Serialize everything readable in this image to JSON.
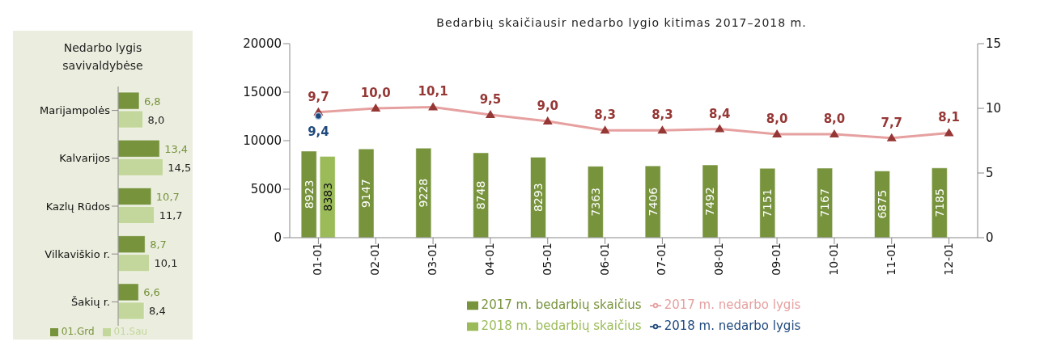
{
  "chart_data": [
    {
      "type": "bar",
      "orientation": "horizontal",
      "title": "Nedarbo lygis savivaldybėse",
      "categories": [
        "Marijampolės",
        "Kalvarijos",
        "Kazlų Rūdos",
        "Vilkaviškio r.",
        "Šakių r."
      ],
      "series": [
        {
          "name": "01.Grd",
          "color": "#77933c",
          "values": [
            6.8,
            13.4,
            10.7,
            8.7,
            6.6
          ],
          "value_labels": [
            "6,8",
            "13,4",
            "10,7",
            "8,7",
            "6,6"
          ]
        },
        {
          "name": "01.Sau",
          "color": "#c3d69b",
          "values": [
            8.0,
            14.5,
            11.7,
            10.1,
            8.4
          ],
          "value_labels": [
            "8,0",
            "14,5",
            "11,7",
            "10,1",
            "8,4"
          ]
        }
      ],
      "legend": "bottom",
      "tick_labels": "y"
    },
    {
      "type": "bar",
      "title": "Bedarbių skaičiausir nedarbo lygio kitimas 2017–2018 m.",
      "categories": [
        "01-01",
        "02-01",
        "03-01",
        "04-01",
        "05-01",
        "06-01",
        "07-01",
        "08-01",
        "09-01",
        "10-01",
        "11-01",
        "12-01"
      ],
      "series": [
        {
          "name": "2017 m. bedarbių skaičius",
          "type": "bar",
          "color": "#77933c",
          "values": [
            8923,
            9147,
            9228,
            8748,
            8293,
            7363,
            7406,
            7492,
            7151,
            7167,
            6875,
            7185
          ]
        },
        {
          "name": "2018 m. bedarbių skaičius",
          "type": "bar",
          "color": "#9bbb59",
          "values": [
            8383,
            null,
            null,
            null,
            null,
            null,
            null,
            null,
            null,
            null,
            null,
            null
          ]
        },
        {
          "name": "2017 m. nedarbo lygis",
          "type": "line",
          "axis": "y2",
          "marker": "triangle",
          "color": "#e6a0a0",
          "values": [
            9.7,
            10.0,
            10.1,
            9.5,
            9.0,
            8.3,
            8.3,
            8.4,
            8.0,
            8.0,
            7.7,
            8.1
          ],
          "value_labels": [
            "9,7",
            "10,0",
            "10,1",
            "9,5",
            "9,0",
            "8,3",
            "8,3",
            "8,4",
            "8,0",
            "8,0",
            "7,7",
            "8,1"
          ]
        },
        {
          "name": "2018 m. nedarbo lygis",
          "type": "line",
          "axis": "y2",
          "marker": "circle",
          "color": "#1f497d",
          "values": [
            9.4,
            null,
            null,
            null,
            null,
            null,
            null,
            null,
            null,
            null,
            null,
            null
          ],
          "value_labels": [
            "9,4",
            null,
            null,
            null,
            null,
            null,
            null,
            null,
            null,
            null,
            null,
            null
          ]
        }
      ],
      "ylim": [
        0,
        20000
      ],
      "yticks": [
        0,
        5000,
        10000,
        15000,
        20000
      ],
      "y2lim": [
        0,
        15
      ],
      "y2ticks": [
        0,
        5,
        10,
        15
      ],
      "data_labels": true,
      "legend": "bottom"
    }
  ]
}
